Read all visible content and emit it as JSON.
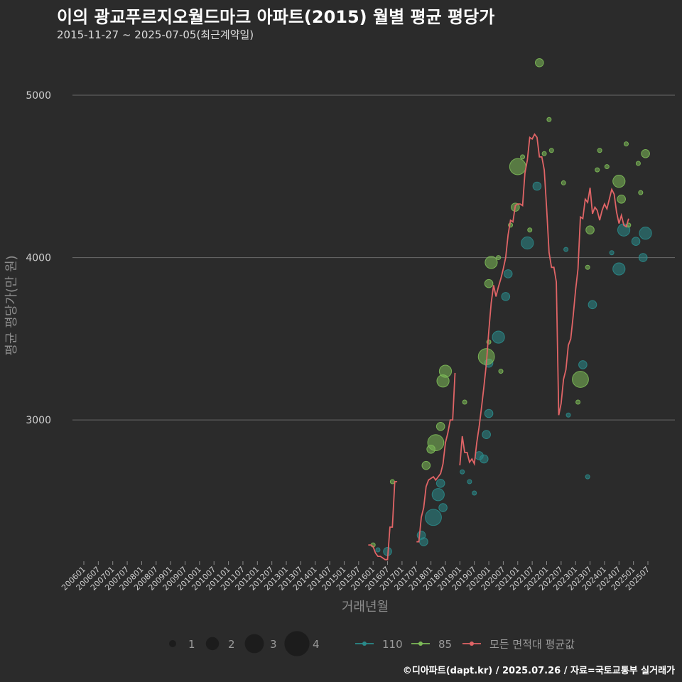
{
  "title": "이의 광교푸르지오월드마크 아파트(2015) 월별 평균 평당가",
  "subtitle": "2015-11-27 ~ 2025-07-05(최근계약일)",
  "caption": "©디아파트(dapt.kr) / 2025.07.26 / 자료=국토교통부 실거래가",
  "chart_data": {
    "type": "scatter",
    "xlabel": "거래년월",
    "ylabel": "평균 평당가(만 원)",
    "yticks": [
      3000,
      4000,
      5000
    ],
    "ylim": [
      2130,
      5280
    ],
    "xlim": [
      "2006-01",
      "2025-07"
    ],
    "x_tick_labels": [
      "200601",
      "200607",
      "200701",
      "200707",
      "200801",
      "200807",
      "200901",
      "200907",
      "201001",
      "201007",
      "201101",
      "201107",
      "201201",
      "201207",
      "201301",
      "201307",
      "201401",
      "201407",
      "201501",
      "201507",
      "201601",
      "201607",
      "201701",
      "201707",
      "201801",
      "201807",
      "201901",
      "201907",
      "202001",
      "202007",
      "202101",
      "202107",
      "202201",
      "202207",
      "202301",
      "202307",
      "202401",
      "202407",
      "202501",
      "202507"
    ],
    "colors": {
      "110": "#2a8a8a",
      "85": "#7dbb58",
      "avg": "#e06466",
      "grid": "#6a6a6a"
    },
    "size_legend": [
      1,
      2,
      3,
      4
    ],
    "legend_labels": [
      "110",
      "85",
      "모든 면적대 평균값"
    ],
    "points": [
      {
        "x": "2016-01",
        "y": 2230,
        "n": 1,
        "s": "85"
      },
      {
        "x": "2016-03",
        "y": 2200,
        "n": 1,
        "s": "110"
      },
      {
        "x": "2016-07",
        "y": 2190,
        "n": 2,
        "s": "110"
      },
      {
        "x": "2016-09",
        "y": 2620,
        "n": 1,
        "s": "85"
      },
      {
        "x": "2017-09",
        "y": 2290,
        "n": 2,
        "s": "110"
      },
      {
        "x": "2017-10",
        "y": 2250,
        "n": 2,
        "s": "110"
      },
      {
        "x": "2017-11",
        "y": 2720,
        "n": 2,
        "s": "85"
      },
      {
        "x": "2018-01",
        "y": 2820,
        "n": 2,
        "s": "85"
      },
      {
        "x": "2018-02",
        "y": 2400,
        "n": 4,
        "s": "110"
      },
      {
        "x": "2018-03",
        "y": 2860,
        "n": 4,
        "s": "85"
      },
      {
        "x": "2018-04",
        "y": 2540,
        "n": 3,
        "s": "110"
      },
      {
        "x": "2018-05",
        "y": 2610,
        "n": 2,
        "s": "110"
      },
      {
        "x": "2018-06",
        "y": 2460,
        "n": 2,
        "s": "110"
      },
      {
        "x": "2018-06",
        "y": 3240,
        "n": 3,
        "s": "85"
      },
      {
        "x": "2018-07",
        "y": 3300,
        "n": 3,
        "s": "85"
      },
      {
        "x": "2018-05",
        "y": 2960,
        "n": 2,
        "s": "85"
      },
      {
        "x": "2019-02",
        "y": 2680,
        "n": 1,
        "s": "110"
      },
      {
        "x": "2019-03",
        "y": 3110,
        "n": 1,
        "s": "85"
      },
      {
        "x": "2019-05",
        "y": 2620,
        "n": 1,
        "s": "110"
      },
      {
        "x": "2019-07",
        "y": 2550,
        "n": 1,
        "s": "110"
      },
      {
        "x": "2019-09",
        "y": 2780,
        "n": 2,
        "s": "110"
      },
      {
        "x": "2019-11",
        "y": 2760,
        "n": 2,
        "s": "110"
      },
      {
        "x": "2019-12",
        "y": 2910,
        "n": 2,
        "s": "110"
      },
      {
        "x": "2020-01",
        "y": 3040,
        "n": 2,
        "s": "110"
      },
      {
        "x": "2020-01",
        "y": 3350,
        "n": 2,
        "s": "110"
      },
      {
        "x": "2019-12",
        "y": 3390,
        "n": 4,
        "s": "85"
      },
      {
        "x": "2020-01",
        "y": 3480,
        "n": 1,
        "s": "85"
      },
      {
        "x": "2020-01",
        "y": 3840,
        "n": 2,
        "s": "85"
      },
      {
        "x": "2020-02",
        "y": 3970,
        "n": 3,
        "s": "85"
      },
      {
        "x": "2020-05",
        "y": 3510,
        "n": 3,
        "s": "110"
      },
      {
        "x": "2020-06",
        "y": 3300,
        "n": 1,
        "s": "85"
      },
      {
        "x": "2020-05",
        "y": 4000,
        "n": 1,
        "s": "85"
      },
      {
        "x": "2020-08",
        "y": 3760,
        "n": 2,
        "s": "110"
      },
      {
        "x": "2020-09",
        "y": 3900,
        "n": 2,
        "s": "110"
      },
      {
        "x": "2020-10",
        "y": 4200,
        "n": 1,
        "s": "85"
      },
      {
        "x": "2020-12",
        "y": 4310,
        "n": 2,
        "s": "85"
      },
      {
        "x": "2021-01",
        "y": 4560,
        "n": 4,
        "s": "85"
      },
      {
        "x": "2021-03",
        "y": 4620,
        "n": 1,
        "s": "85"
      },
      {
        "x": "2021-05",
        "y": 4090,
        "n": 3,
        "s": "110"
      },
      {
        "x": "2021-06",
        "y": 4170,
        "n": 1,
        "s": "85"
      },
      {
        "x": "2021-09",
        "y": 4440,
        "n": 2,
        "s": "110"
      },
      {
        "x": "2021-10",
        "y": 5200,
        "n": 2,
        "s": "85"
      },
      {
        "x": "2021-12",
        "y": 4640,
        "n": 1,
        "s": "85"
      },
      {
        "x": "2022-02",
        "y": 4850,
        "n": 1,
        "s": "85"
      },
      {
        "x": "2022-03",
        "y": 4660,
        "n": 1,
        "s": "85"
      },
      {
        "x": "2022-08",
        "y": 4460,
        "n": 1,
        "s": "85"
      },
      {
        "x": "2022-09",
        "y": 4050,
        "n": 1,
        "s": "110"
      },
      {
        "x": "2022-10",
        "y": 3030,
        "n": 1,
        "s": "110"
      },
      {
        "x": "2023-02",
        "y": 3110,
        "n": 1,
        "s": "85"
      },
      {
        "x": "2023-03",
        "y": 3250,
        "n": 4,
        "s": "85"
      },
      {
        "x": "2023-04",
        "y": 3340,
        "n": 2,
        "s": "110"
      },
      {
        "x": "2023-06",
        "y": 2650,
        "n": 1,
        "s": "110"
      },
      {
        "x": "2023-06",
        "y": 3940,
        "n": 1,
        "s": "85"
      },
      {
        "x": "2023-07",
        "y": 4170,
        "n": 2,
        "s": "85"
      },
      {
        "x": "2023-08",
        "y": 3710,
        "n": 2,
        "s": "110"
      },
      {
        "x": "2023-10",
        "y": 4540,
        "n": 1,
        "s": "85"
      },
      {
        "x": "2023-11",
        "y": 4660,
        "n": 1,
        "s": "85"
      },
      {
        "x": "2024-02",
        "y": 4560,
        "n": 1,
        "s": "85"
      },
      {
        "x": "2024-04",
        "y": 4030,
        "n": 1,
        "s": "110"
      },
      {
        "x": "2024-07",
        "y": 3930,
        "n": 3,
        "s": "110"
      },
      {
        "x": "2024-07",
        "y": 4470,
        "n": 3,
        "s": "85"
      },
      {
        "x": "2024-08",
        "y": 4360,
        "n": 2,
        "s": "85"
      },
      {
        "x": "2024-09",
        "y": 4170,
        "n": 3,
        "s": "110"
      },
      {
        "x": "2024-10",
        "y": 4700,
        "n": 1,
        "s": "85"
      },
      {
        "x": "2024-11",
        "y": 4200,
        "n": 1,
        "s": "85"
      },
      {
        "x": "2025-02",
        "y": 4100,
        "n": 2,
        "s": "110"
      },
      {
        "x": "2025-03",
        "y": 4580,
        "n": 1,
        "s": "85"
      },
      {
        "x": "2025-04",
        "y": 4400,
        "n": 1,
        "s": "85"
      },
      {
        "x": "2025-05",
        "y": 4000,
        "n": 2,
        "s": "110"
      },
      {
        "x": "2025-06",
        "y": 4150,
        "n": 3,
        "s": "110"
      },
      {
        "x": "2025-06",
        "y": 4640,
        "n": 2,
        "s": "85"
      }
    ],
    "avg_segments": [
      [
        [
          "2015-11",
          2230
        ],
        [
          "2015-12",
          2230
        ],
        [
          "2016-01",
          2220
        ],
        [
          "2016-02",
          2180
        ],
        [
          "2016-03",
          2160
        ],
        [
          "2016-04",
          2160
        ],
        [
          "2016-05",
          2150
        ],
        [
          "2016-06",
          2140
        ],
        [
          "2016-07",
          2140
        ],
        [
          "2016-08",
          2340
        ],
        [
          "2016-09",
          2340
        ],
        [
          "2016-10",
          2620
        ],
        [
          "2016-11",
          2620
        ]
      ],
      [
        [
          "2017-07",
          2250
        ],
        [
          "2017-08",
          2250
        ],
        [
          "2017-09",
          2400
        ],
        [
          "2017-10",
          2460
        ],
        [
          "2017-11",
          2590
        ],
        [
          "2017-12",
          2630
        ],
        [
          "2018-01",
          2640
        ],
        [
          "2018-02",
          2650
        ],
        [
          "2018-03",
          2630
        ],
        [
          "2018-04",
          2650
        ],
        [
          "2018-05",
          2670
        ],
        [
          "2018-06",
          2730
        ],
        [
          "2018-07",
          2860
        ],
        [
          "2018-08",
          2920
        ],
        [
          "2018-09",
          3000
        ],
        [
          "2018-10",
          3000
        ],
        [
          "2018-11",
          3290
        ]
      ],
      [
        [
          "2019-01",
          2720
        ],
        [
          "2019-02",
          2900
        ],
        [
          "2019-03",
          2800
        ],
        [
          "2019-04",
          2800
        ],
        [
          "2019-05",
          2740
        ],
        [
          "2019-06",
          2760
        ],
        [
          "2019-07",
          2730
        ],
        [
          "2019-08",
          2860
        ],
        [
          "2019-09",
          2960
        ],
        [
          "2019-10",
          3080
        ],
        [
          "2019-11",
          3210
        ],
        [
          "2019-12",
          3350
        ],
        [
          "2020-01",
          3550
        ],
        [
          "2020-02",
          3720
        ],
        [
          "2020-03",
          3830
        ],
        [
          "2020-04",
          3760
        ],
        [
          "2020-05",
          3820
        ],
        [
          "2020-06",
          3870
        ],
        [
          "2020-07",
          3930
        ],
        [
          "2020-08",
          4000
        ],
        [
          "2020-09",
          4140
        ],
        [
          "2020-10",
          4230
        ],
        [
          "2020-11",
          4220
        ],
        [
          "2020-12",
          4320
        ],
        [
          "2021-01",
          4330
        ],
        [
          "2021-02",
          4330
        ],
        [
          "2021-03",
          4320
        ],
        [
          "2021-04",
          4520
        ],
        [
          "2021-05",
          4600
        ],
        [
          "2021-06",
          4740
        ],
        [
          "2021-07",
          4730
        ],
        [
          "2021-08",
          4760
        ],
        [
          "2021-09",
          4740
        ],
        [
          "2021-10",
          4620
        ],
        [
          "2021-11",
          4620
        ],
        [
          "2021-12",
          4540
        ],
        [
          "2022-01",
          4300
        ],
        [
          "2022-02",
          4030
        ],
        [
          "2022-03",
          3940
        ],
        [
          "2022-04",
          3940
        ],
        [
          "2022-05",
          3850
        ],
        [
          "2022-06",
          3030
        ],
        [
          "2022-07",
          3100
        ],
        [
          "2022-08",
          3250
        ],
        [
          "2022-09",
          3310
        ],
        [
          "2022-10",
          3460
        ],
        [
          "2022-11",
          3500
        ],
        [
          "2022-12",
          3640
        ],
        [
          "2023-01",
          3800
        ],
        [
          "2023-02",
          3930
        ],
        [
          "2023-03",
          4250
        ],
        [
          "2023-04",
          4240
        ],
        [
          "2023-05",
          4360
        ],
        [
          "2023-06",
          4340
        ],
        [
          "2023-07",
          4430
        ],
        [
          "2023-08",
          4270
        ],
        [
          "2023-09",
          4310
        ],
        [
          "2023-10",
          4290
        ],
        [
          "2023-11",
          4230
        ],
        [
          "2023-12",
          4290
        ],
        [
          "2024-01",
          4330
        ],
        [
          "2024-02",
          4300
        ],
        [
          "2024-03",
          4360
        ],
        [
          "2024-04",
          4420
        ],
        [
          "2024-05",
          4390
        ],
        [
          "2024-06",
          4280
        ],
        [
          "2024-07",
          4210
        ],
        [
          "2024-08",
          4260
        ],
        [
          "2024-09",
          4200
        ],
        [
          "2024-10",
          4190
        ],
        [
          "2024-11",
          4240
        ]
      ]
    ]
  }
}
